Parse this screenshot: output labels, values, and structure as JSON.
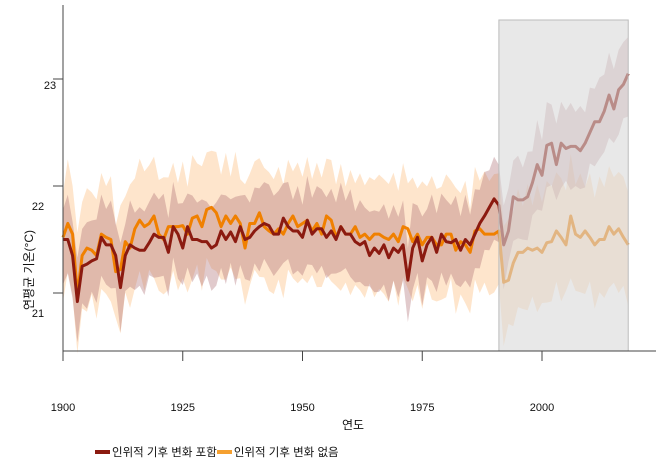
{
  "chart_data": {
    "type": "line",
    "xlabel": "연도",
    "ylabel": "연평균 기온(°C)",
    "xlim": [
      1900,
      2024
    ],
    "ylim": [
      20.55,
      23.7
    ],
    "x_ticks": [
      1900,
      1925,
      1950,
      1975,
      2000
    ],
    "x_tick_labels": [
      "1900",
      "1925",
      "1950",
      "1975",
      "2000"
    ],
    "y_ticks": [
      21,
      22,
      23
    ],
    "y_tick_labels": [
      "21",
      "22",
      "23"
    ],
    "grid": false,
    "legend_position": "bottom-left",
    "highlight_period": [
      1991,
      2018
    ],
    "highlight_color": "#e6e6e6",
    "x_start": 1900,
    "series": [
      {
        "name": "인위적 기후 변화 포함",
        "color": "#8b1a10",
        "band_color": "#a8686c",
        "band_halfwidth": 0.35,
        "values": [
          21.5,
          21.5,
          21.35,
          20.92,
          21.25,
          21.27,
          21.3,
          21.32,
          21.52,
          21.45,
          21.45,
          21.35,
          21.05,
          21.35,
          21.45,
          21.42,
          21.4,
          21.4,
          21.47,
          21.55,
          21.52,
          21.52,
          21.38,
          21.62,
          21.55,
          21.42,
          21.62,
          21.5,
          21.5,
          21.48,
          21.48,
          21.42,
          21.45,
          21.58,
          21.5,
          21.57,
          21.48,
          21.62,
          21.5,
          21.52,
          21.58,
          21.62,
          21.65,
          21.63,
          21.55,
          21.55,
          21.7,
          21.62,
          21.58,
          21.58,
          21.52,
          21.68,
          21.55,
          21.6,
          21.6,
          21.52,
          21.58,
          21.5,
          21.62,
          21.55,
          21.55,
          21.48,
          21.45,
          21.48,
          21.35,
          21.42,
          21.37,
          21.45,
          21.33,
          21.42,
          21.38,
          21.45,
          21.12,
          21.42,
          21.52,
          21.3,
          21.45,
          21.52,
          21.38,
          21.55,
          21.48,
          21.47,
          21.5,
          21.4,
          21.5,
          21.45,
          21.55,
          21.65,
          21.72,
          21.8,
          21.88,
          21.82,
          21.45,
          21.58,
          21.9,
          21.87,
          21.87,
          21.9,
          22.03,
          22.2,
          22.1,
          22.38,
          22.4,
          22.2,
          22.4,
          22.35,
          22.37,
          22.37,
          22.33,
          22.4,
          22.5,
          22.6,
          22.6,
          22.7,
          22.85,
          22.72,
          22.9,
          22.95,
          23.05
        ]
      },
      {
        "name": "인위적 기후 변화 없음",
        "color": "#f08000",
        "band_color": "#fdbd80",
        "band_halfwidth": 0.5,
        "values": [
          21.52,
          21.65,
          21.55,
          20.98,
          21.35,
          21.42,
          21.4,
          21.35,
          21.55,
          21.52,
          21.5,
          21.2,
          21.22,
          21.48,
          21.42,
          21.6,
          21.68,
          21.62,
          21.65,
          21.72,
          21.55,
          21.5,
          21.62,
          21.62,
          21.62,
          21.63,
          21.55,
          21.7,
          21.72,
          21.62,
          21.78,
          21.8,
          21.75,
          21.62,
          21.72,
          21.65,
          21.72,
          21.65,
          21.42,
          21.65,
          21.65,
          21.75,
          21.62,
          21.58,
          21.55,
          21.6,
          21.55,
          21.65,
          21.72,
          21.62,
          21.65,
          21.68,
          21.58,
          21.65,
          21.55,
          21.72,
          21.68,
          21.52,
          21.62,
          21.55,
          21.55,
          21.62,
          21.52,
          21.55,
          21.5,
          21.55,
          21.55,
          21.52,
          21.5,
          21.55,
          21.48,
          21.62,
          21.6,
          21.48,
          21.55,
          21.45,
          21.52,
          21.52,
          21.45,
          21.45,
          21.55,
          21.55,
          21.4,
          21.48,
          21.45,
          21.38,
          21.58,
          21.6,
          21.55,
          21.55,
          21.55,
          21.58,
          21.1,
          21.12,
          21.28,
          21.38,
          21.38,
          21.42,
          21.4,
          21.42,
          21.38,
          21.47,
          21.48,
          21.58,
          21.52,
          21.45,
          21.72,
          21.55,
          21.52,
          21.58,
          21.52,
          21.45,
          21.5,
          21.5,
          21.62,
          21.55,
          21.6,
          21.52,
          21.45
        ]
      }
    ]
  }
}
